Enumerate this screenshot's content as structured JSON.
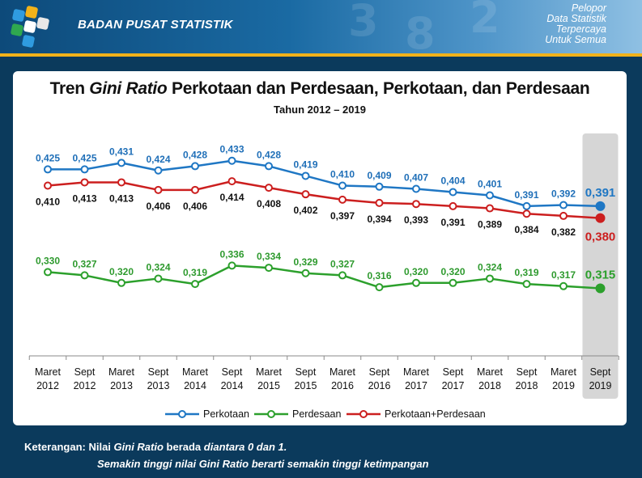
{
  "header": {
    "org_name": "BADAN PUSAT STATISTIK",
    "motto_lines": [
      "Pelopor",
      "Data Statistik",
      "Terpercaya",
      "Untuk Semua"
    ]
  },
  "chart_data": {
    "type": "line",
    "title_prefix": "Tren",
    "title_italic": "Gini Ratio",
    "title_suffix": "Perkotaan dan Perdesaan, Perkotaan, dan Perdesaan",
    "subtitle": "Tahun 2012 – 2019",
    "categories": [
      [
        "Maret",
        "2012"
      ],
      [
        "Sept",
        "2012"
      ],
      [
        "Maret",
        "2013"
      ],
      [
        "Sept",
        "2013"
      ],
      [
        "Maret",
        "2014"
      ],
      [
        "Sept",
        "2014"
      ],
      [
        "Maret",
        "2015"
      ],
      [
        "Sept",
        "2015"
      ],
      [
        "Maret",
        "2016"
      ],
      [
        "Sept",
        "2016"
      ],
      [
        "Maret",
        "2017"
      ],
      [
        "Sept",
        "2017"
      ],
      [
        "Maret",
        "2018"
      ],
      [
        "Sept",
        "2018"
      ],
      [
        "Maret",
        "2019"
      ],
      [
        "Sept",
        "2019"
      ]
    ],
    "series": [
      {
        "name": "Perkotaan",
        "color": "#1f77c4",
        "label_color": "#1f6fb8",
        "values": [
          0.425,
          0.425,
          0.431,
          0.424,
          0.428,
          0.433,
          0.428,
          0.419,
          0.41,
          0.409,
          0.407,
          0.404,
          0.401,
          0.391,
          0.392,
          0.391
        ]
      },
      {
        "name": "Perdesaan",
        "color": "#2ca02c",
        "label_color": "#2e9a2e",
        "values": [
          0.33,
          0.327,
          0.32,
          0.324,
          0.319,
          0.336,
          0.334,
          0.329,
          0.327,
          0.316,
          0.32,
          0.32,
          0.324,
          0.319,
          0.317,
          0.315
        ]
      },
      {
        "name": "Perkotaan+Perdesaan",
        "color": "#cc1f1f",
        "label_color": "#111111",
        "last_label_color": "#cc1f1f",
        "values": [
          0.41,
          0.413,
          0.413,
          0.406,
          0.406,
          0.414,
          0.408,
          0.402,
          0.397,
          0.394,
          0.393,
          0.391,
          0.389,
          0.384,
          0.382,
          0.38
        ]
      }
    ],
    "labels": [
      [
        "0,425",
        "0,425",
        "0,431",
        "0,424",
        "0,428",
        "0,433",
        "0,428",
        "0,419",
        "0,410",
        "0,409",
        "0,407",
        "0,404",
        "0,401",
        "0,391",
        "0,392",
        "0,391"
      ],
      [
        "0,330",
        "0,327",
        "0,320",
        "0,324",
        "0,319",
        "0,336",
        "0,334",
        "0,329",
        "0,327",
        "0,316",
        "0,320",
        "0,320",
        "0,324",
        "0,319",
        "0,317",
        "0,315"
      ],
      [
        "0,410",
        "0,413",
        "0,413",
        "0,406",
        "0,406",
        "0,414",
        "0,408",
        "0,402",
        "0,397",
        "0,394",
        "0,393",
        "0,391",
        "0,389",
        "0,384",
        "0,382",
        "0,380"
      ]
    ],
    "ylim": [
      0.26,
      0.45
    ],
    "highlight_last": true,
    "grid": false,
    "legend": "bottom"
  },
  "notes": {
    "line1_a": "Keterangan: Nilai ",
    "line1_b": "Gini Ratio",
    "line1_c": " berada ",
    "line1_d": "diantara 0 dan 1.",
    "line2": "Semakin tinggi nilai Gini Ratio berarti semakin tinggi ketimpangan"
  }
}
